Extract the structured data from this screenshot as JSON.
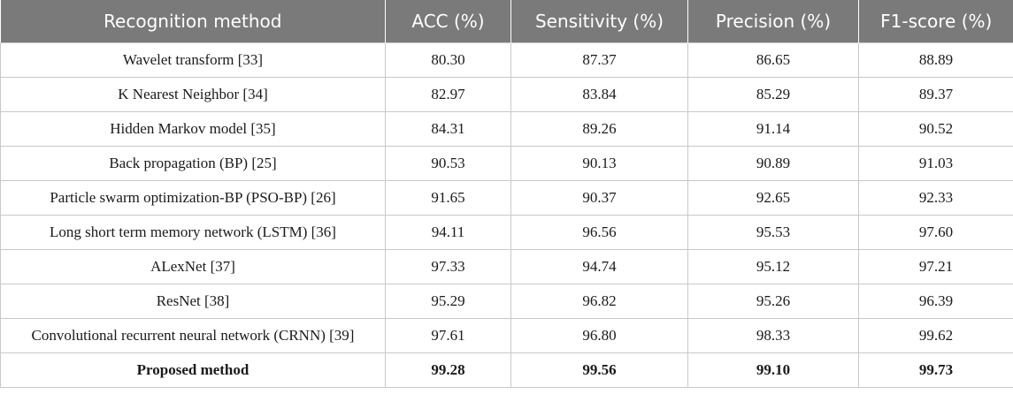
{
  "table": {
    "headers": [
      "Recognition method",
      "ACC (%)",
      "Sensitivity (%)",
      "Precision (%)",
      "F1-score (%)"
    ],
    "rows": [
      [
        "Wavelet transform [33]",
        "80.30",
        "87.37",
        "86.65",
        "88.89"
      ],
      [
        "K Nearest Neighbor [34]",
        "82.97",
        "83.84",
        "85.29",
        "89.37"
      ],
      [
        "Hidden Markov model [35]",
        "84.31",
        "89.26",
        "91.14",
        "90.52"
      ],
      [
        "Back propagation (BP) [25]",
        "90.53",
        "90.13",
        "90.89",
        "91.03"
      ],
      [
        "Particle swarm optimization-BP (PSO-BP) [26]",
        "91.65",
        "90.37",
        "92.65",
        "92.33"
      ],
      [
        "Long short term memory network (LSTM) [36]",
        "94.11",
        "96.56",
        "95.53",
        "97.60"
      ],
      [
        "ALexNet [37]",
        "97.33",
        "94.74",
        "95.12",
        "97.21"
      ],
      [
        "ResNet [38]",
        "95.29",
        "96.82",
        "95.26",
        "96.39"
      ],
      [
        "Convolutional recurrent neural network (CRNN) [39]",
        "97.61",
        "96.80",
        "98.33",
        "99.62"
      ],
      [
        "Proposed method",
        "99.28",
        "99.56",
        "99.10",
        "99.73"
      ]
    ]
  },
  "colors": {
    "header_background": "#7a7a7a",
    "header_text": "#ffffff",
    "border": "#c8c8c8"
  }
}
